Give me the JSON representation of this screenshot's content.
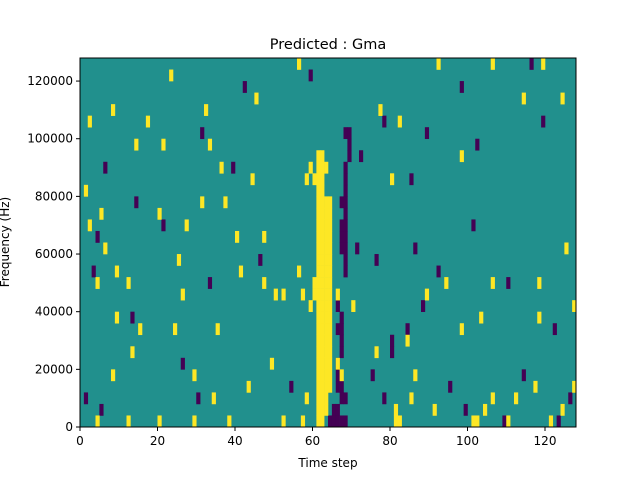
{
  "chart_data": {
    "type": "heatmap",
    "title": "Predicted : Gma",
    "xlabel": "Time step",
    "ylabel": "Frequency (Hz)",
    "xlim": [
      0,
      128
    ],
    "ylim": [
      0,
      128000
    ],
    "x_ticks": [
      0,
      20,
      40,
      60,
      80,
      100,
      120
    ],
    "y_ticks": [
      0,
      20000,
      40000,
      60000,
      80000,
      100000,
      120000
    ],
    "x_tick_labels": [
      "0",
      "20",
      "40",
      "60",
      "80",
      "100",
      "120"
    ],
    "y_tick_labels": [
      "0",
      "20000",
      "40000",
      "60000",
      "80000",
      "100000",
      "120000"
    ],
    "n_time_steps": 128,
    "n_freq_bins": 32,
    "value_levels": [
      -1,
      0,
      1
    ],
    "colormap": {
      "-1": "#440154",
      "0": "#21908d",
      "1": "#fde725"
    },
    "background_value": 0,
    "cells_value_1": [
      [
        61,
        0
      ],
      [
        61,
        1
      ],
      [
        61,
        2
      ],
      [
        61,
        3
      ],
      [
        61,
        4
      ],
      [
        61,
        5
      ],
      [
        61,
        6
      ],
      [
        61,
        7
      ],
      [
        61,
        8
      ],
      [
        61,
        9
      ],
      [
        61,
        10
      ],
      [
        61,
        11
      ],
      [
        61,
        12
      ],
      [
        61,
        13
      ],
      [
        61,
        14
      ],
      [
        61,
        15
      ],
      [
        61,
        16
      ],
      [
        61,
        17
      ],
      [
        61,
        18
      ],
      [
        61,
        19
      ],
      [
        61,
        20
      ],
      [
        61,
        21
      ],
      [
        61,
        22
      ],
      [
        61,
        23
      ],
      [
        62,
        0
      ],
      [
        62,
        1
      ],
      [
        62,
        2
      ],
      [
        62,
        3
      ],
      [
        62,
        4
      ],
      [
        62,
        5
      ],
      [
        62,
        6
      ],
      [
        62,
        7
      ],
      [
        62,
        8
      ],
      [
        62,
        9
      ],
      [
        62,
        10
      ],
      [
        62,
        11
      ],
      [
        62,
        12
      ],
      [
        62,
        13
      ],
      [
        62,
        14
      ],
      [
        62,
        15
      ],
      [
        62,
        16
      ],
      [
        62,
        17
      ],
      [
        62,
        18
      ],
      [
        62,
        19
      ],
      [
        62,
        20
      ],
      [
        62,
        21
      ],
      [
        62,
        22
      ],
      [
        62,
        23
      ],
      [
        63,
        1
      ],
      [
        63,
        2
      ],
      [
        63,
        3
      ],
      [
        63,
        4
      ],
      [
        63,
        5
      ],
      [
        63,
        6
      ],
      [
        63,
        7
      ],
      [
        63,
        8
      ],
      [
        63,
        9
      ],
      [
        63,
        10
      ],
      [
        63,
        11
      ],
      [
        63,
        12
      ],
      [
        63,
        13
      ],
      [
        63,
        14
      ],
      [
        63,
        15
      ],
      [
        63,
        16
      ],
      [
        63,
        17
      ],
      [
        63,
        18
      ],
      [
        63,
        19
      ],
      [
        64,
        3
      ],
      [
        64,
        4
      ],
      [
        64,
        5
      ],
      [
        64,
        6
      ],
      [
        64,
        7
      ],
      [
        64,
        8
      ],
      [
        64,
        9
      ],
      [
        64,
        10
      ],
      [
        64,
        11
      ],
      [
        64,
        12
      ],
      [
        64,
        13
      ],
      [
        64,
        14
      ],
      [
        64,
        15
      ],
      [
        64,
        16
      ],
      [
        64,
        17
      ],
      [
        64,
        18
      ],
      [
        64,
        19
      ],
      [
        60,
        11
      ],
      [
        60,
        12
      ],
      [
        60,
        21
      ],
      [
        59,
        10
      ],
      [
        59,
        22
      ],
      [
        58,
        21
      ],
      [
        57,
        11
      ],
      [
        58,
        2
      ],
      [
        63,
        22
      ],
      [
        4,
        0
      ],
      [
        12,
        0
      ],
      [
        20,
        0
      ],
      [
        29,
        0
      ],
      [
        38,
        0
      ],
      [
        52,
        0
      ],
      [
        57,
        0
      ],
      [
        81,
        0
      ],
      [
        82,
        0
      ],
      [
        101,
        0
      ],
      [
        102,
        0
      ],
      [
        110,
        0
      ],
      [
        121,
        0
      ],
      [
        8,
        4
      ],
      [
        13,
        6
      ],
      [
        29,
        4
      ],
      [
        34,
        2
      ],
      [
        43,
        3
      ],
      [
        49,
        5
      ],
      [
        67,
        4
      ],
      [
        76,
        6
      ],
      [
        81,
        1
      ],
      [
        85,
        2
      ],
      [
        91,
        1
      ],
      [
        98,
        8
      ],
      [
        104,
        1
      ],
      [
        106,
        2
      ],
      [
        117,
        3
      ],
      [
        124,
        1
      ],
      [
        127,
        3
      ],
      [
        2,
        17
      ],
      [
        4,
        12
      ],
      [
        5,
        18
      ],
      [
        6,
        15
      ],
      [
        9,
        13
      ],
      [
        12,
        12
      ],
      [
        15,
        8
      ],
      [
        20,
        18
      ],
      [
        24,
        8
      ],
      [
        25,
        14
      ],
      [
        27,
        17
      ],
      [
        35,
        8
      ],
      [
        44,
        21
      ],
      [
        47,
        16
      ],
      [
        50,
        11
      ],
      [
        52,
        11
      ],
      [
        56,
        13
      ],
      [
        66,
        5
      ],
      [
        84,
        7
      ],
      [
        86,
        4
      ],
      [
        94,
        12
      ],
      [
        103,
        9
      ],
      [
        112,
        2
      ],
      [
        118,
        12
      ],
      [
        125,
        15
      ],
      [
        2,
        26
      ],
      [
        8,
        27
      ],
      [
        14,
        24
      ],
      [
        17,
        26
      ],
      [
        21,
        24
      ],
      [
        23,
        30
      ],
      [
        36,
        22
      ],
      [
        40,
        16
      ],
      [
        45,
        28
      ],
      [
        56,
        31
      ],
      [
        77,
        27
      ],
      [
        82,
        26
      ],
      [
        92,
        31
      ],
      [
        98,
        23
      ],
      [
        106,
        31
      ],
      [
        114,
        28
      ],
      [
        119,
        31
      ],
      [
        124,
        28
      ],
      [
        1,
        20
      ],
      [
        9,
        9
      ],
      [
        26,
        11
      ],
      [
        31,
        19
      ],
      [
        32,
        27
      ],
      [
        33,
        24
      ],
      [
        37,
        19
      ],
      [
        41,
        13
      ],
      [
        47,
        12
      ],
      [
        66,
        11
      ],
      [
        70,
        10
      ],
      [
        80,
        21
      ],
      [
        89,
        11
      ],
      [
        106,
        12
      ],
      [
        118,
        9
      ],
      [
        127,
        10
      ]
    ],
    "cells_value_neg1": [
      [
        64,
        0
      ],
      [
        65,
        0
      ],
      [
        66,
        0
      ],
      [
        67,
        0
      ],
      [
        68,
        0
      ],
      [
        65,
        1
      ],
      [
        66,
        1
      ],
      [
        67,
        2
      ],
      [
        68,
        2
      ],
      [
        66,
        3
      ],
      [
        67,
        3
      ],
      [
        66,
        4
      ],
      [
        66,
        5
      ],
      [
        67,
        6
      ],
      [
        67,
        7
      ],
      [
        66,
        8
      ],
      [
        67,
        8
      ],
      [
        67,
        9
      ],
      [
        66,
        10
      ],
      [
        68,
        13
      ],
      [
        68,
        14
      ],
      [
        67,
        15
      ],
      [
        68,
        15
      ],
      [
        67,
        16
      ],
      [
        68,
        16
      ],
      [
        67,
        17
      ],
      [
        68,
        17
      ],
      [
        68,
        18
      ],
      [
        67,
        19
      ],
      [
        68,
        19
      ],
      [
        68,
        20
      ],
      [
        68,
        21
      ],
      [
        68,
        22
      ],
      [
        69,
        23
      ],
      [
        69,
        24
      ],
      [
        68,
        25
      ],
      [
        69,
        25
      ],
      [
        1,
        2
      ],
      [
        5,
        1
      ],
      [
        30,
        2
      ],
      [
        54,
        3
      ],
      [
        75,
        4
      ],
      [
        78,
        2
      ],
      [
        80,
        6
      ],
      [
        84,
        8
      ],
      [
        88,
        10
      ],
      [
        95,
        3
      ],
      [
        99,
        1
      ],
      [
        109,
        0
      ],
      [
        114,
        4
      ],
      [
        123,
        0
      ],
      [
        126,
        2
      ],
      [
        3,
        13
      ],
      [
        4,
        16
      ],
      [
        13,
        9
      ],
      [
        26,
        5
      ],
      [
        33,
        12
      ],
      [
        46,
        14
      ],
      [
        71,
        15
      ],
      [
        76,
        14
      ],
      [
        80,
        7
      ],
      [
        86,
        15
      ],
      [
        92,
        13
      ],
      [
        101,
        17
      ],
      [
        110,
        12
      ],
      [
        122,
        8
      ],
      [
        6,
        22
      ],
      [
        14,
        19
      ],
      [
        21,
        17
      ],
      [
        31,
        25
      ],
      [
        39,
        22
      ],
      [
        42,
        29
      ],
      [
        59,
        30
      ],
      [
        72,
        23
      ],
      [
        78,
        26
      ],
      [
        85,
        21
      ],
      [
        89,
        25
      ],
      [
        98,
        29
      ],
      [
        102,
        24
      ],
      [
        116,
        31
      ],
      [
        119,
        26
      ]
    ]
  }
}
